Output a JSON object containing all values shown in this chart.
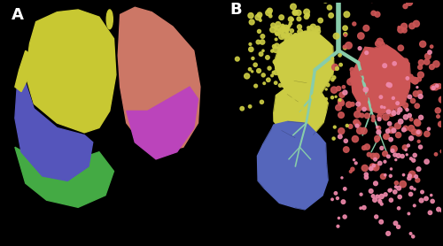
{
  "panel_A_bg": "#b8b8b8",
  "panel_B_bg": "#000000",
  "fig_bg": "#000000",
  "label_A": "A",
  "label_B": "B",
  "label_fontsize": 13,
  "label_fontweight": "bold",
  "panel_A_colors": {
    "yellow": "#c8c832",
    "blue": "#5555bb",
    "green": "#44aa44",
    "red": "#cc7766",
    "purple": "#bb44bb"
  },
  "panel_B_colors": {
    "yellow": "#cccc44",
    "blue": "#5566bb",
    "red": "#cc5555",
    "pink": "#ee88aa",
    "tree": "#88ccaa",
    "bg": "#000000"
  },
  "border_color": "#ffffff",
  "border_linewidth": 1.5
}
